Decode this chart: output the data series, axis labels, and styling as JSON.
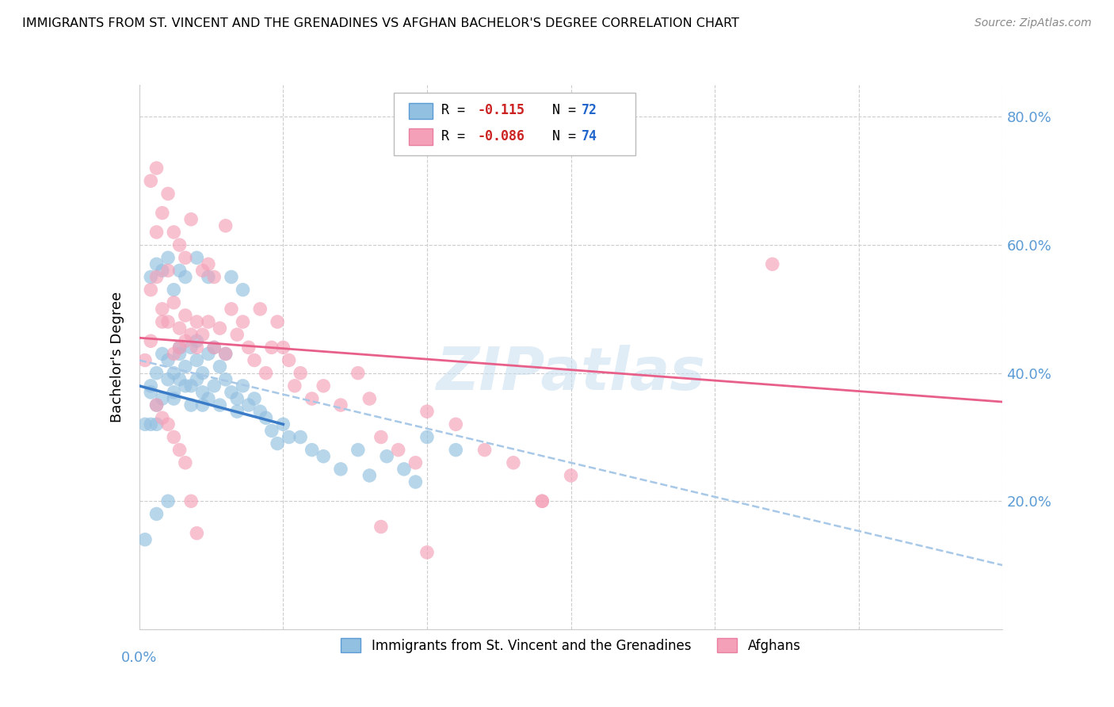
{
  "title": "IMMIGRANTS FROM ST. VINCENT AND THE GRENADINES VS AFGHAN BACHELOR'S DEGREE CORRELATION CHART",
  "source_text": "Source: ZipAtlas.com",
  "ylabel": "Bachelor's Degree",
  "xlim": [
    0.0,
    0.15
  ],
  "ylim": [
    0.0,
    0.85
  ],
  "yticks": [
    0.0,
    0.2,
    0.4,
    0.6,
    0.8
  ],
  "ytick_labels": [
    "",
    "20.0%",
    "40.0%",
    "60.0%",
    "80.0%"
  ],
  "color_blue": "#92C0E0",
  "color_pink": "#F4A0B8",
  "trendline_blue_solid_color": "#3A7BC8",
  "trendline_pink_solid_color": "#E8608A",
  "trendline_blue_dashed_color": "#A8C8E8",
  "watermark": "ZIPatlas",
  "blue_scatter_x": [
    0.001,
    0.002,
    0.002,
    0.002,
    0.003,
    0.003,
    0.003,
    0.003,
    0.004,
    0.004,
    0.004,
    0.005,
    0.005,
    0.005,
    0.005,
    0.006,
    0.006,
    0.006,
    0.006,
    0.007,
    0.007,
    0.007,
    0.007,
    0.008,
    0.008,
    0.008,
    0.009,
    0.009,
    0.009,
    0.01,
    0.01,
    0.01,
    0.01,
    0.011,
    0.011,
    0.011,
    0.012,
    0.012,
    0.012,
    0.013,
    0.013,
    0.014,
    0.014,
    0.015,
    0.015,
    0.016,
    0.016,
    0.017,
    0.017,
    0.018,
    0.018,
    0.019,
    0.02,
    0.021,
    0.022,
    0.023,
    0.024,
    0.025,
    0.026,
    0.028,
    0.03,
    0.032,
    0.035,
    0.038,
    0.04,
    0.043,
    0.046,
    0.048,
    0.05,
    0.055,
    0.001,
    0.002,
    0.003
  ],
  "blue_scatter_y": [
    0.14,
    0.37,
    0.38,
    0.55,
    0.35,
    0.4,
    0.57,
    0.18,
    0.43,
    0.36,
    0.56,
    0.42,
    0.39,
    0.58,
    0.2,
    0.4,
    0.37,
    0.53,
    0.36,
    0.43,
    0.56,
    0.39,
    0.44,
    0.41,
    0.55,
    0.38,
    0.35,
    0.44,
    0.38,
    0.45,
    0.42,
    0.39,
    0.58,
    0.4,
    0.37,
    0.35,
    0.43,
    0.36,
    0.55,
    0.44,
    0.38,
    0.41,
    0.35,
    0.39,
    0.43,
    0.37,
    0.55,
    0.36,
    0.34,
    0.38,
    0.53,
    0.35,
    0.36,
    0.34,
    0.33,
    0.31,
    0.29,
    0.32,
    0.3,
    0.3,
    0.28,
    0.27,
    0.25,
    0.28,
    0.24,
    0.27,
    0.25,
    0.23,
    0.3,
    0.28,
    0.32,
    0.32,
    0.32
  ],
  "pink_scatter_x": [
    0.002,
    0.002,
    0.003,
    0.003,
    0.003,
    0.004,
    0.004,
    0.004,
    0.005,
    0.005,
    0.005,
    0.006,
    0.006,
    0.006,
    0.007,
    0.007,
    0.007,
    0.008,
    0.008,
    0.008,
    0.009,
    0.009,
    0.01,
    0.01,
    0.011,
    0.011,
    0.012,
    0.012,
    0.013,
    0.013,
    0.014,
    0.015,
    0.015,
    0.016,
    0.017,
    0.018,
    0.019,
    0.02,
    0.021,
    0.022,
    0.023,
    0.024,
    0.025,
    0.026,
    0.027,
    0.028,
    0.03,
    0.032,
    0.035,
    0.038,
    0.04,
    0.042,
    0.045,
    0.048,
    0.05,
    0.055,
    0.06,
    0.065,
    0.07,
    0.075,
    0.001,
    0.002,
    0.003,
    0.004,
    0.005,
    0.006,
    0.007,
    0.008,
    0.009,
    0.01,
    0.11,
    0.07,
    0.042,
    0.05
  ],
  "pink_scatter_y": [
    0.53,
    0.7,
    0.55,
    0.72,
    0.62,
    0.48,
    0.65,
    0.5,
    0.56,
    0.68,
    0.48,
    0.43,
    0.51,
    0.62,
    0.47,
    0.44,
    0.6,
    0.49,
    0.58,
    0.45,
    0.46,
    0.64,
    0.48,
    0.44,
    0.56,
    0.46,
    0.48,
    0.57,
    0.44,
    0.55,
    0.47,
    0.43,
    0.63,
    0.5,
    0.46,
    0.48,
    0.44,
    0.42,
    0.5,
    0.4,
    0.44,
    0.48,
    0.44,
    0.42,
    0.38,
    0.4,
    0.36,
    0.38,
    0.35,
    0.4,
    0.36,
    0.3,
    0.28,
    0.26,
    0.34,
    0.32,
    0.28,
    0.26,
    0.2,
    0.24,
    0.42,
    0.45,
    0.35,
    0.33,
    0.32,
    0.3,
    0.28,
    0.26,
    0.2,
    0.15,
    0.57,
    0.2,
    0.16,
    0.12
  ]
}
